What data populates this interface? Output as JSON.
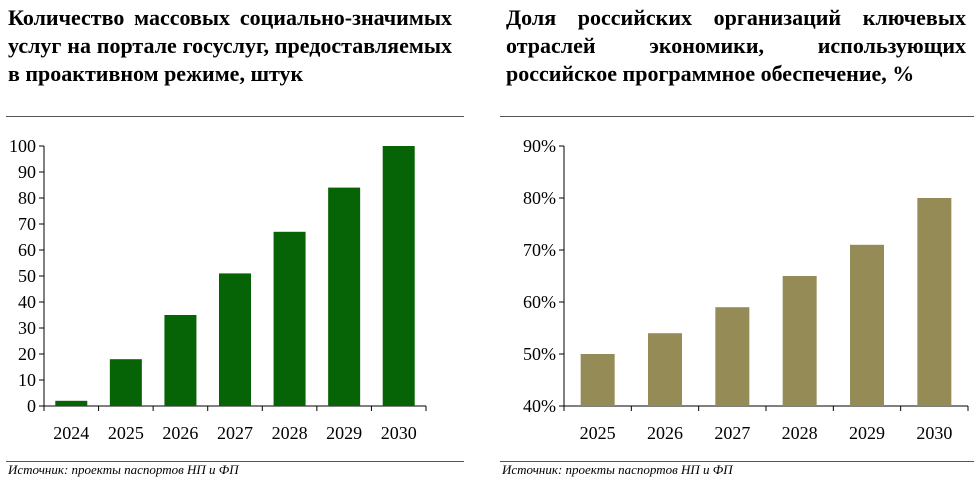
{
  "chart_data": [
    {
      "type": "bar",
      "title": "Количество массовых социально-значимых услуг на портале госуслуг, предоставляемых в проактивном режиме, штук",
      "categories": [
        "2024",
        "2025",
        "2026",
        "2027",
        "2028",
        "2029",
        "2030"
      ],
      "values": [
        2,
        18,
        35,
        51,
        67,
        84,
        100
      ],
      "ylim": [
        0,
        100
      ],
      "yticks": [
        "0",
        "10",
        "20",
        "30",
        "40",
        "50",
        "60",
        "70",
        "80",
        "90",
        "100"
      ],
      "color": "#066406",
      "grid": false,
      "source": "Источник: проекты паспортов НП и ФП"
    },
    {
      "type": "bar",
      "title": "Доля российских организаций ключевых отраслей экономики, использующих российское программное обеспечение, %",
      "categories": [
        "2025",
        "2026",
        "2027",
        "2028",
        "2029",
        "2030"
      ],
      "values": [
        50,
        54,
        59,
        65,
        71,
        80
      ],
      "ylim": [
        40,
        90
      ],
      "yticks": [
        "40%",
        "50%",
        "60%",
        "70%",
        "80%",
        "90%"
      ],
      "color": "#958b56",
      "grid": false,
      "source": "Источник: проекты паспортов НП и ФП"
    }
  ]
}
